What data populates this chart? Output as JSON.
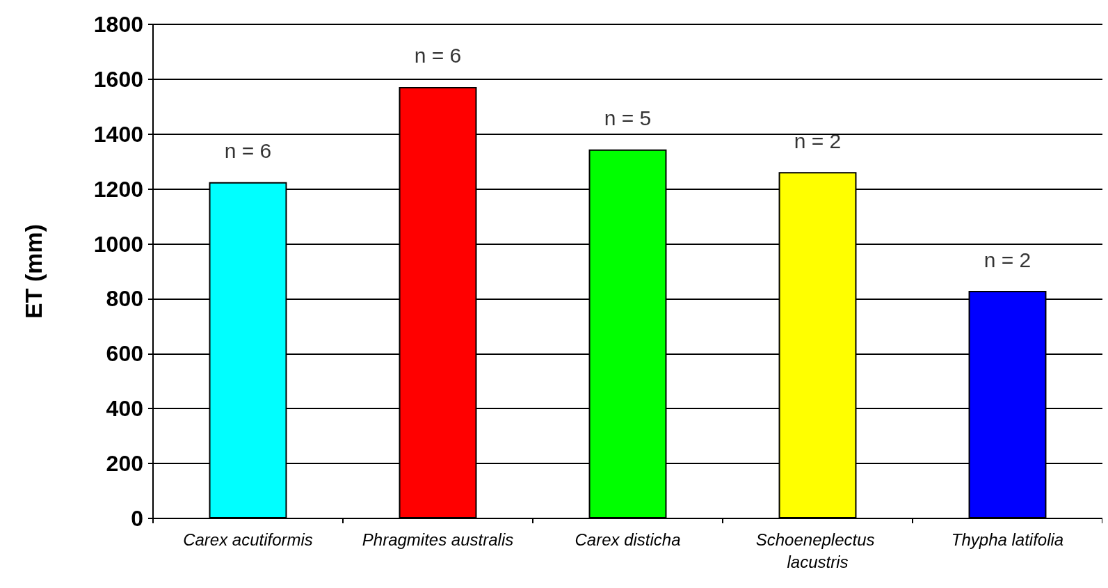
{
  "chart_data": {
    "type": "bar",
    "ylabel": "ET (mm)",
    "categories": [
      "Carex acutiformis",
      "Phragmites australis",
      "Carex disticha",
      "Schoeneplectus lacustris",
      "Thypha latifolia"
    ],
    "values": [
      1225,
      1572,
      1344,
      1262,
      829
    ],
    "colors": [
      "#00ffff",
      "#ff0000",
      "#00ff00",
      "#ffff00",
      "#0000ff"
    ],
    "ylim": [
      0,
      1800
    ],
    "yticks": [
      0,
      200,
      400,
      600,
      800,
      1000,
      1200,
      1400,
      1600,
      1800
    ],
    "grid": "y",
    "annotations": [
      {
        "text": "n = 6",
        "x": "Carex acutiformis",
        "y": 1225
      },
      {
        "text": "n = 6",
        "x": "Phragmites australis",
        "y": 1572
      },
      {
        "text": "n = 5",
        "x": "Carex disticha",
        "y": 1344
      },
      {
        "text": "n = 2",
        "x": "Schoeneplectus lacustris",
        "y": 1262
      },
      {
        "text": "n = 2",
        "x": "Thypha latifolia",
        "y": 829
      }
    ]
  }
}
